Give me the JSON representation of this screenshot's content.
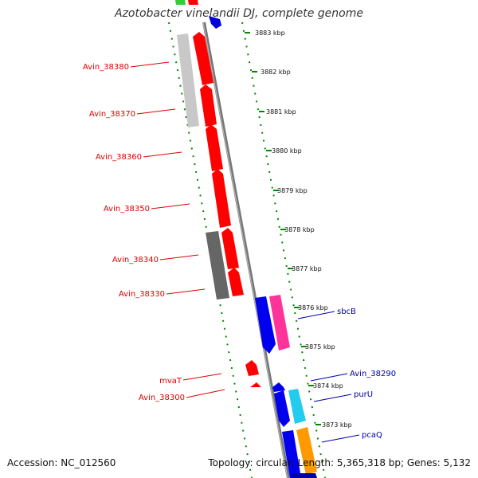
{
  "title": "Azotobacter vinelandii DJ, complete genome",
  "accession": "Accession: NC_012560",
  "topology": "Topology: circular; Length: 5,365,318 bp; Genes: 5,132",
  "colors": {
    "forward_feature": "#ff0000",
    "reverse_feature": "#0000ee",
    "pink_feature": "#ff3399",
    "cyan_feature": "#22ccee",
    "orange_feature": "#ff9900",
    "tick": "#008800",
    "label_red": "#dd0000",
    "label_blue": "#0000aa"
  },
  "kbp_ticks": [
    "3883 kbp",
    "3882 kbp",
    "3881 kbp",
    "3880 kbp",
    "3879 kbp",
    "3878 kbp",
    "3877 kbp",
    "3876 kbp",
    "3875 kbp",
    "3874 kbp",
    "3873 kbp"
  ],
  "left_labels": [
    "Avin_38380",
    "Avin_38370",
    "Avin_38360",
    "Avin_38350",
    "Avin_38340",
    "Avin_38330",
    "mvaT",
    "Avin_38300"
  ],
  "right_labels": [
    "sbcB",
    "Avin_38290",
    "purU",
    "pcaQ"
  ]
}
